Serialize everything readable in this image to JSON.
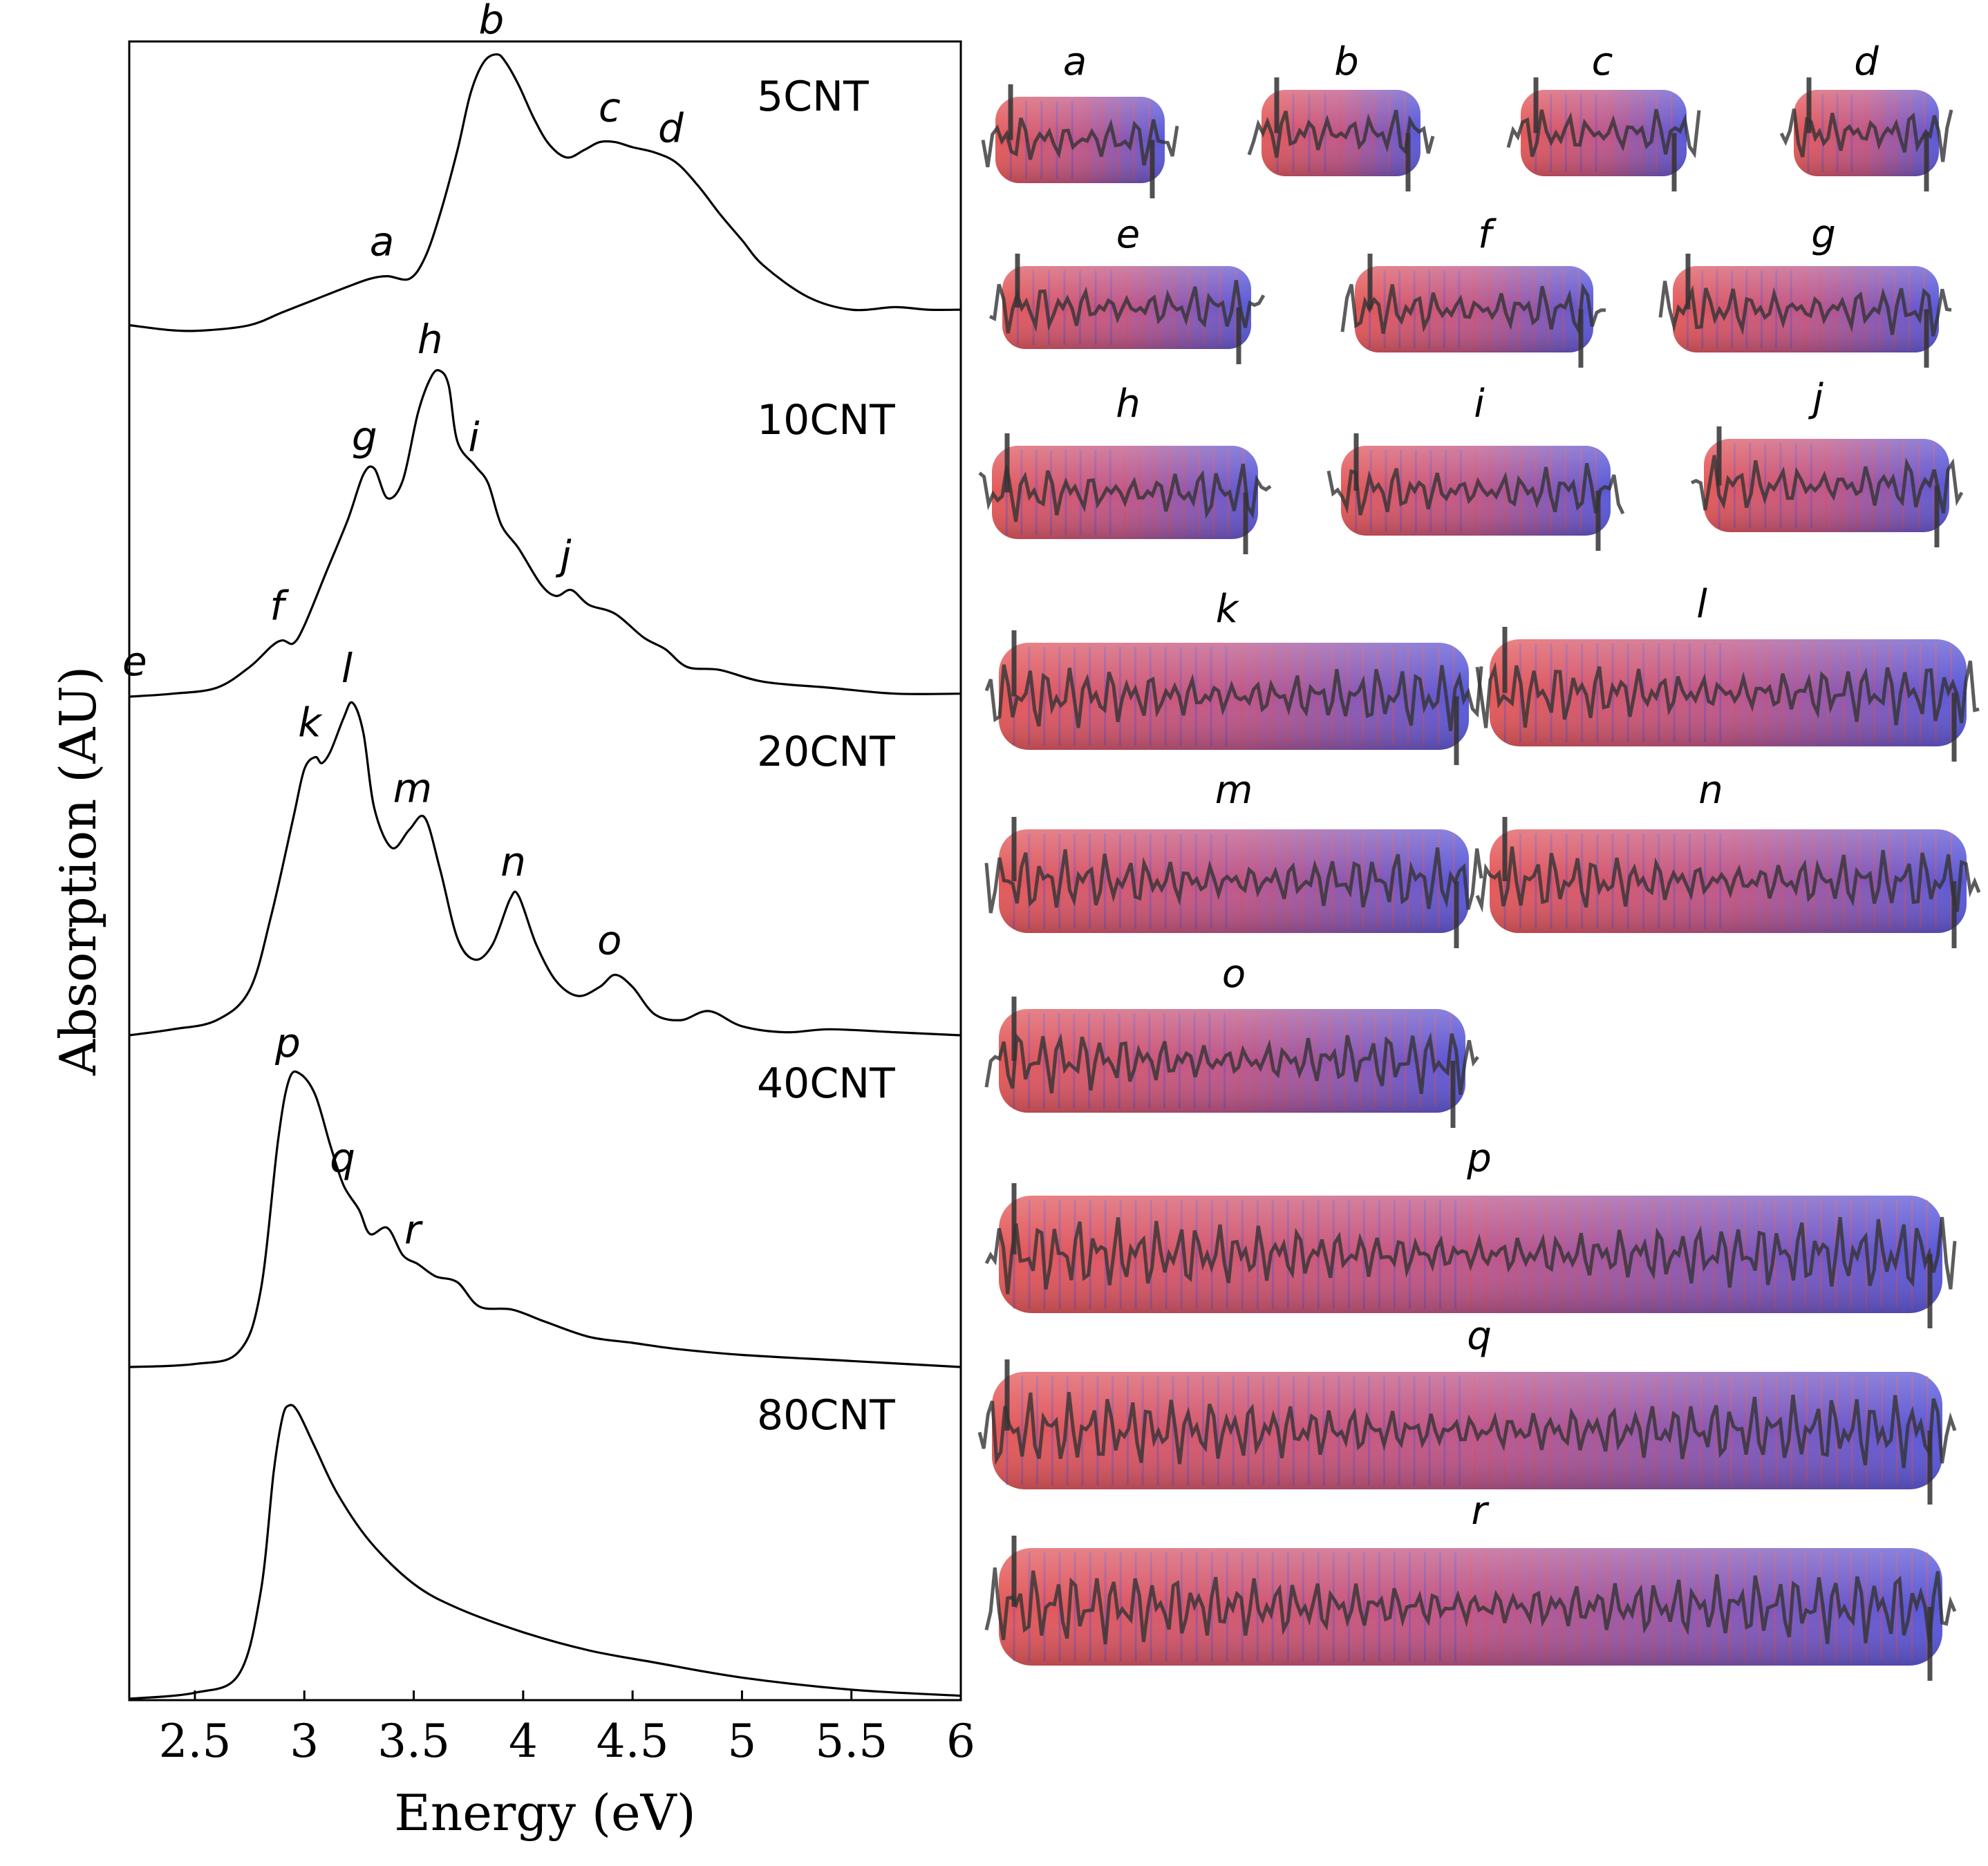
{
  "chart_data": {
    "type": "line",
    "title": "",
    "xlabel": "Energy (eV)",
    "ylabel": "Absorption (AU)",
    "xlim": [
      2.2,
      6.0
    ],
    "xticks": [
      "2.5",
      "3",
      "3.5",
      "4",
      "4.5",
      "5",
      "5.5",
      "6"
    ],
    "y_ticks_shown": false,
    "series": [
      {
        "name": "5CNT",
        "x": [
          2.2,
          2.4,
          2.55,
          2.75,
          2.9,
          3.05,
          3.2,
          3.3,
          3.38,
          3.48,
          3.55,
          3.62,
          3.7,
          3.76,
          3.82,
          3.88,
          3.92,
          3.98,
          4.05,
          4.12,
          4.2,
          4.28,
          4.35,
          4.42,
          4.5,
          4.6,
          4.7,
          4.8,
          4.9,
          5.0,
          5.1,
          5.3,
          5.5,
          5.7,
          5.85,
          6.0
        ],
        "y": [
          0.02,
          0.0,
          0.0,
          0.02,
          0.07,
          0.12,
          0.17,
          0.2,
          0.21,
          0.2,
          0.28,
          0.45,
          0.7,
          0.92,
          1.04,
          1.07,
          1.04,
          0.95,
          0.82,
          0.72,
          0.67,
          0.7,
          0.73,
          0.73,
          0.71,
          0.69,
          0.65,
          0.56,
          0.45,
          0.35,
          0.25,
          0.13,
          0.08,
          0.09,
          0.08,
          0.08
        ],
        "annotations": [
          "a",
          "b",
          "c",
          "d"
        ]
      },
      {
        "name": "10CNT",
        "x": [
          2.2,
          2.4,
          2.6,
          2.75,
          2.85,
          2.9,
          2.95,
          3.0,
          3.1,
          3.2,
          3.27,
          3.32,
          3.38,
          3.45,
          3.52,
          3.58,
          3.62,
          3.66,
          3.7,
          3.78,
          3.84,
          3.9,
          3.98,
          4.08,
          4.15,
          4.22,
          4.3,
          4.42,
          4.55,
          4.65,
          4.75,
          4.9,
          5.1,
          5.4,
          5.7,
          6.0
        ],
        "y": [
          0.0,
          0.01,
          0.03,
          0.1,
          0.17,
          0.19,
          0.18,
          0.24,
          0.42,
          0.6,
          0.75,
          0.77,
          0.67,
          0.73,
          0.96,
          1.08,
          1.1,
          1.05,
          0.86,
          0.78,
          0.72,
          0.58,
          0.5,
          0.38,
          0.34,
          0.36,
          0.31,
          0.28,
          0.2,
          0.16,
          0.1,
          0.09,
          0.05,
          0.03,
          0.01,
          0.01
        ],
        "annotations": [
          "e",
          "f",
          "g",
          "h",
          "i",
          "j"
        ]
      },
      {
        "name": "20CNT",
        "x": [
          2.2,
          2.4,
          2.6,
          2.75,
          2.85,
          2.95,
          3.0,
          3.05,
          3.08,
          3.12,
          3.18,
          3.22,
          3.27,
          3.32,
          3.4,
          3.48,
          3.55,
          3.62,
          3.7,
          3.78,
          3.86,
          3.94,
          3.98,
          4.06,
          4.15,
          4.25,
          4.35,
          4.42,
          4.5,
          4.6,
          4.72,
          4.85,
          5.0,
          5.2,
          5.4,
          5.7,
          6.0
        ],
        "y": [
          0.0,
          0.02,
          0.05,
          0.15,
          0.4,
          0.72,
          0.88,
          0.92,
          0.9,
          0.94,
          1.05,
          1.1,
          1.0,
          0.75,
          0.62,
          0.68,
          0.72,
          0.55,
          0.32,
          0.25,
          0.3,
          0.45,
          0.46,
          0.3,
          0.18,
          0.13,
          0.16,
          0.2,
          0.16,
          0.07,
          0.05,
          0.08,
          0.03,
          0.01,
          0.02,
          0.01,
          0.0
        ],
        "annotations": [
          "k",
          "l",
          "m",
          "n",
          "o"
        ]
      },
      {
        "name": "40CNT",
        "x": [
          2.2,
          2.5,
          2.7,
          2.8,
          2.88,
          2.93,
          2.98,
          3.05,
          3.12,
          3.18,
          3.25,
          3.3,
          3.38,
          3.45,
          3.52,
          3.6,
          3.7,
          3.8,
          3.95,
          4.1,
          4.3,
          4.5,
          4.7,
          5.0,
          5.5,
          6.0
        ],
        "y": [
          0.0,
          0.01,
          0.05,
          0.25,
          0.75,
          0.95,
          0.97,
          0.9,
          0.73,
          0.6,
          0.52,
          0.44,
          0.46,
          0.37,
          0.34,
          0.3,
          0.28,
          0.2,
          0.19,
          0.15,
          0.1,
          0.08,
          0.06,
          0.04,
          0.02,
          0.0
        ],
        "annotations": [
          "p",
          "q",
          "r"
        ]
      },
      {
        "name": "80CNT",
        "x": [
          2.2,
          2.5,
          2.7,
          2.8,
          2.86,
          2.9,
          2.93,
          2.97,
          3.05,
          3.15,
          3.3,
          3.5,
          3.7,
          4.0,
          4.3,
          4.6,
          5.0,
          5.5,
          6.0
        ],
        "y": [
          0.0,
          0.02,
          0.08,
          0.35,
          0.75,
          0.93,
          0.97,
          0.95,
          0.83,
          0.68,
          0.52,
          0.38,
          0.3,
          0.22,
          0.16,
          0.12,
          0.07,
          0.03,
          0.01
        ],
        "annotations": []
      }
    ],
    "peak_labels": [
      {
        "label": "a",
        "series": "5CNT",
        "x": 3.38
      },
      {
        "label": "b",
        "series": "5CNT",
        "x": 3.88
      },
      {
        "label": "c",
        "series": "5CNT",
        "x": 4.42
      },
      {
        "label": "d",
        "series": "5CNT",
        "x": 4.7
      },
      {
        "label": "e",
        "series": "10CNT",
        "x": 2.25
      },
      {
        "label": "f",
        "series": "10CNT",
        "x": 2.9
      },
      {
        "label": "g",
        "series": "10CNT",
        "x": 3.3
      },
      {
        "label": "h",
        "series": "10CNT",
        "x": 3.6
      },
      {
        "label": "i",
        "series": "10CNT",
        "x": 3.8
      },
      {
        "label": "j",
        "series": "10CNT",
        "x": 4.22
      },
      {
        "label": "k",
        "series": "20CNT",
        "x": 3.05
      },
      {
        "label": "l",
        "series": "20CNT",
        "x": 3.22
      },
      {
        "label": "m",
        "series": "20CNT",
        "x": 3.52
      },
      {
        "label": "n",
        "series": "20CNT",
        "x": 3.98
      },
      {
        "label": "o",
        "series": "20CNT",
        "x": 4.42
      },
      {
        "label": "p",
        "series": "40CNT",
        "x": 2.95
      },
      {
        "label": "q",
        "series": "40CNT",
        "x": 3.2
      },
      {
        "label": "r",
        "series": "40CNT",
        "x": 3.52
      }
    ]
  },
  "orbitals": [
    {
      "label": "a"
    },
    {
      "label": "b"
    },
    {
      "label": "c"
    },
    {
      "label": "d"
    },
    {
      "label": "e"
    },
    {
      "label": "f"
    },
    {
      "label": "g"
    },
    {
      "label": "h"
    },
    {
      "label": "i"
    },
    {
      "label": "j"
    },
    {
      "label": "k"
    },
    {
      "label": "l"
    },
    {
      "label": "m"
    },
    {
      "label": "n"
    },
    {
      "label": "o"
    },
    {
      "label": "p"
    },
    {
      "label": "q"
    },
    {
      "label": "r"
    }
  ],
  "colors": {
    "positive": "#e24a4a",
    "negative": "#4a4ad6",
    "line": "#000000",
    "overlay": "#333333"
  }
}
